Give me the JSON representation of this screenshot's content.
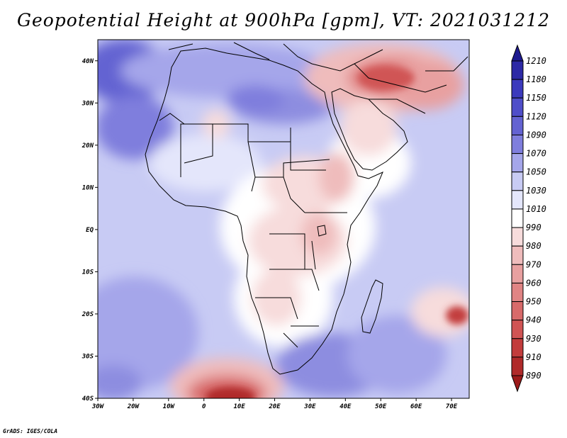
{
  "title": "Geopotential Height at 900hPa [gpm], VT: 2021031212",
  "credit": "GrADS: IGES/COLA",
  "chart_data": {
    "type": "heatmap",
    "variable": "Geopotential Height at 900hPa",
    "units": "gpm",
    "valid_time": "2021031212",
    "lon_range": [
      -30,
      75
    ],
    "lat_range": [
      -40,
      45
    ],
    "x_ticks": [
      {
        "lon": -30,
        "label": "30W"
      },
      {
        "lon": -20,
        "label": "20W"
      },
      {
        "lon": -10,
        "label": "10W"
      },
      {
        "lon": 0,
        "label": "0"
      },
      {
        "lon": 10,
        "label": "10E"
      },
      {
        "lon": 20,
        "label": "20E"
      },
      {
        "lon": 30,
        "label": "30E"
      },
      {
        "lon": 40,
        "label": "40E"
      },
      {
        "lon": 50,
        "label": "50E"
      },
      {
        "lon": 60,
        "label": "60E"
      },
      {
        "lon": 70,
        "label": "70E"
      }
    ],
    "y_ticks": [
      {
        "lat": 40,
        "label": "40N"
      },
      {
        "lat": 30,
        "label": "30N"
      },
      {
        "lat": 20,
        "label": "20N"
      },
      {
        "lat": 10,
        "label": "10N"
      },
      {
        "lat": 0,
        "label": "EQ"
      },
      {
        "lat": -10,
        "label": "10S"
      },
      {
        "lat": -20,
        "label": "20S"
      },
      {
        "lat": -30,
        "label": "30S"
      },
      {
        "lat": -40,
        "label": "40S"
      }
    ],
    "colorbar": {
      "levels": [
        1210,
        1180,
        1150,
        1120,
        1090,
        1070,
        1050,
        1030,
        1010,
        990,
        980,
        970,
        960,
        950,
        940,
        930,
        910,
        890
      ],
      "colors": [
        "#1e1a8f",
        "#2d29a6",
        "#3c3abd",
        "#4f4ec9",
        "#6463d2",
        "#7f7edd",
        "#a5a6ea",
        "#c8cbf4",
        "#e4e6fb",
        "#ffffff",
        "#f7dcdc",
        "#efbcbc",
        "#e8a0a0",
        "#e08484",
        "#d86a6a",
        "#d05454",
        "#c23c3c",
        "#b02a2a",
        "#9c1a1a"
      ]
    },
    "features": [
      {
        "name": "high-north-atlantic",
        "lon": -27,
        "lat": 37,
        "value": 1110
      },
      {
        "name": "high-sahara-belt",
        "lon": 8,
        "lat": 30,
        "value": 1070
      },
      {
        "name": "low-arabia-iran",
        "lon": 52,
        "lat": 35,
        "value": 960
      },
      {
        "name": "low-east-africa",
        "lon": 32,
        "lat": 8,
        "value": 980
      },
      {
        "name": "low-southern-africa",
        "lon": 28,
        "lat": -8,
        "value": 985
      },
      {
        "name": "low-south-atlantic",
        "lon": 8,
        "lat": -39,
        "value": 920
      },
      {
        "name": "low-indian-ocean",
        "lon": 72,
        "lat": -20,
        "value": 940
      },
      {
        "name": "high-south-indian",
        "lon": 40,
        "lat": -33,
        "value": 1080
      },
      {
        "name": "high-south-atlantic",
        "lon": -25,
        "lat": -30,
        "value": 1070
      }
    ]
  }
}
